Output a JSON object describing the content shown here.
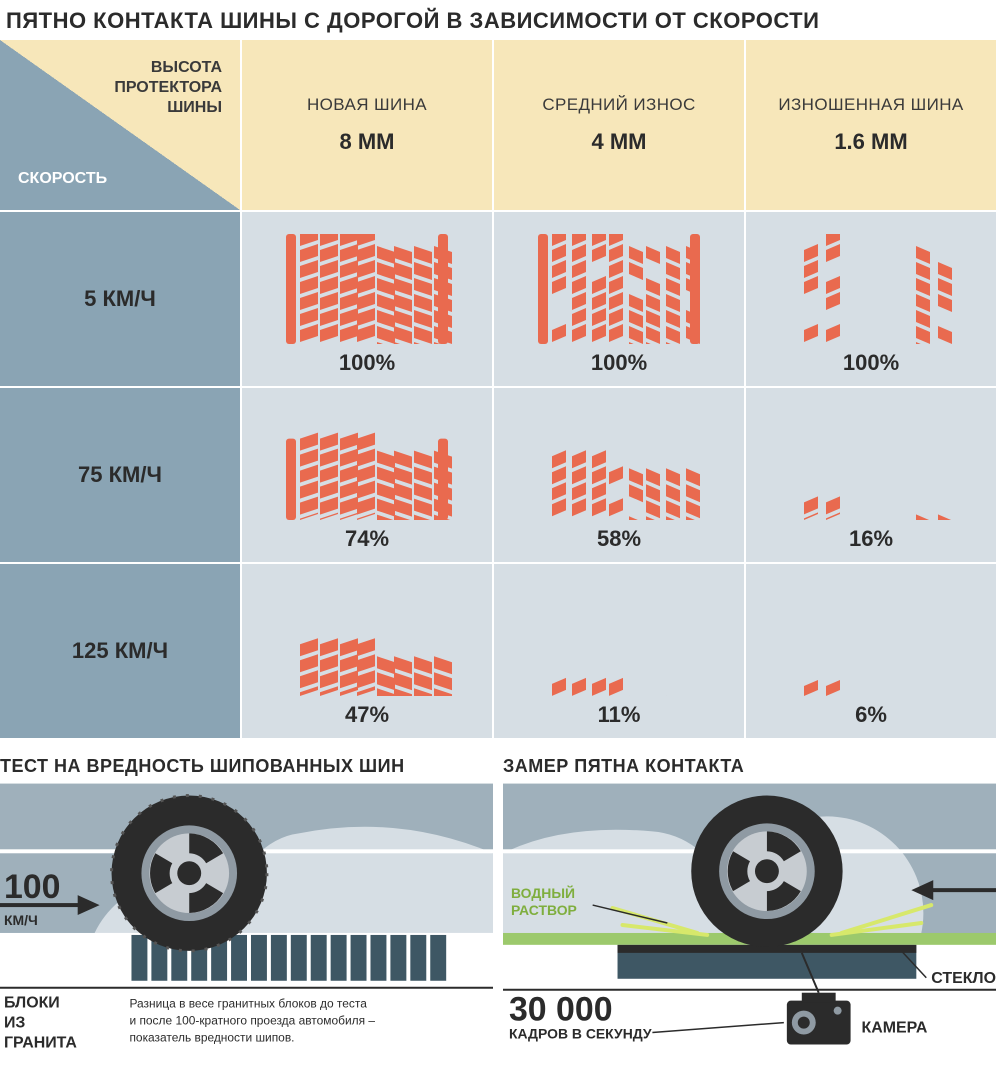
{
  "title": "ПЯТНО КОНТАКТА ШИНЫ С ДОРОГОЙ В ЗАВИСИМОСТИ ОТ СКОРОСТИ",
  "corner": {
    "top_line1": "ВЫСОТА",
    "top_line2": "ПРОТЕКТОРА",
    "top_line3": "ШИНЫ",
    "bottom": "СКОРОСТЬ"
  },
  "columns": [
    {
      "label": "НОВАЯ ШИНА",
      "mm": "8 ММ"
    },
    {
      "label": "СРЕДНИЙ ИЗНОС",
      "mm": "4 ММ"
    },
    {
      "label": "ИЗНОШЕННАЯ ШИНА",
      "mm": "1.6 ММ"
    }
  ],
  "rows": [
    {
      "label": "5 КМ/Ч",
      "pct": [
        "100%",
        "100%",
        "100%"
      ],
      "fill": [
        1.0,
        1.0,
        1.0
      ]
    },
    {
      "label": "75 КМ/Ч",
      "pct": [
        "74%",
        "58%",
        "16%"
      ],
      "fill": [
        0.74,
        0.58,
        0.16
      ]
    },
    {
      "label": "125 КМ/Ч",
      "pct": [
        "47%",
        "11%",
        "6%"
      ],
      "fill": [
        0.47,
        0.11,
        0.06
      ]
    }
  ],
  "tread_color": "#e96a4f",
  "bg_colors": {
    "col_header": "#f7e7ba",
    "row_header": "#8aa4b4",
    "cell": "#d6dee4"
  },
  "panel_left": {
    "title": "ТЕСТ НА ВРЕДНОСТЬ ШИПОВАННЫХ ШИН",
    "speed_number": "100",
    "speed_unit": "КМ/Ч",
    "blocks_line1": "БЛОКИ",
    "blocks_line2": "ИЗ",
    "blocks_line3": "ГРАНИТА",
    "note_line1": "Разница в весе гранитных блоков до теста",
    "note_line2": "и после 100-кратного проезда автомобиля –",
    "note_line3": "показатель вредности шипов."
  },
  "panel_right": {
    "title": "ЗАМЕР ПЯТНА КОНТАКТА",
    "water_line1": "ВОДНЫЙ",
    "water_line2": "РАСТВОР",
    "glass": "СТЕКЛО",
    "fps_number": "30 000",
    "fps_unit": "КАДРОВ В СЕКУНДУ",
    "camera": "КАМЕРА"
  }
}
